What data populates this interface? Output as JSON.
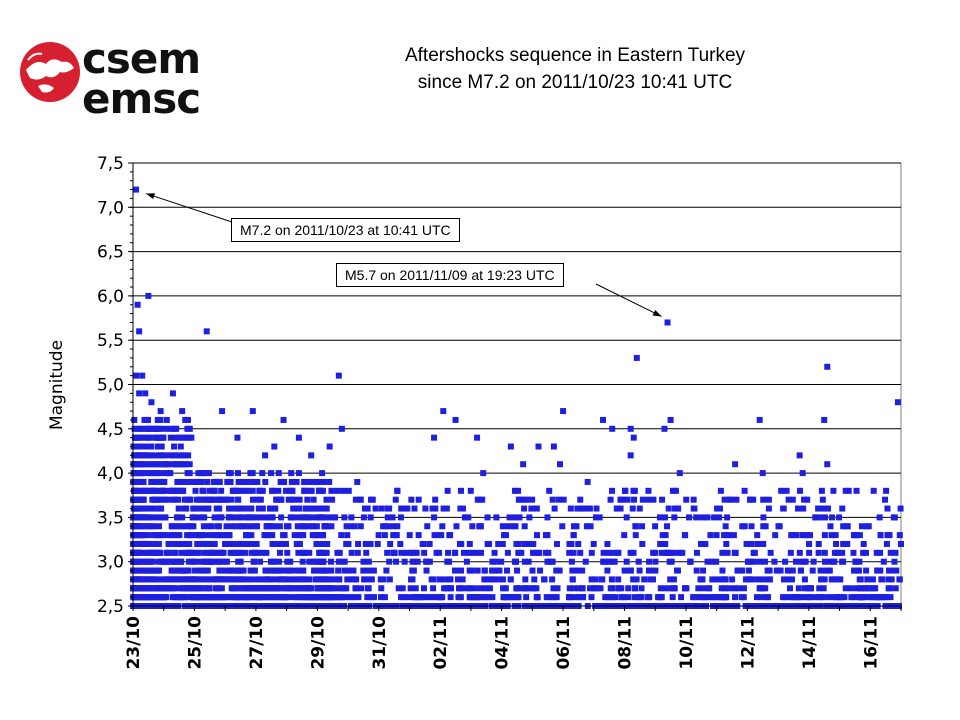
{
  "logo": {
    "line1": "csem",
    "line2": "emsc"
  },
  "title": {
    "line1": "Aftershocks sequence in Eastern Turkey",
    "line2": "since M7.2 on 2011/10/23 10:41 UTC"
  },
  "colors": {
    "marker": "#1f1fe0",
    "grid": "#000000",
    "logo_red": "#d6202f"
  },
  "chart_data": {
    "type": "scatter",
    "title": "Aftershocks sequence in Eastern Turkey since M7.2 on 2011/10/23 10:41 UTC",
    "xlabel": "",
    "ylabel": "Magnitude",
    "x_unit": "days since 2011/10/23",
    "xlim": [
      0,
      25
    ],
    "ylim": [
      2.5,
      7.5
    ],
    "yticks": [
      "2,5",
      "3,0",
      "3,5",
      "4,0",
      "4,5",
      "5,0",
      "5,5",
      "6,0",
      "6,5",
      "7,0",
      "7,5"
    ],
    "ytick_values": [
      2.5,
      3.0,
      3.5,
      4.0,
      4.5,
      5.0,
      5.5,
      6.0,
      6.5,
      7.0,
      7.5
    ],
    "xticks": [
      "23/10",
      "25/10",
      "27/10",
      "29/10",
      "31/10",
      "02/11",
      "04/11",
      "06/11",
      "08/11",
      "10/11",
      "12/11",
      "14/11",
      "16/11"
    ],
    "xtick_values": [
      0,
      2,
      4,
      6,
      8,
      10,
      12,
      14,
      16,
      18,
      20,
      22,
      24
    ],
    "grid": "horizontal",
    "annotations": [
      {
        "text": "M7.2 on 2011/10/23 at 10:41 UTC",
        "x": 0.1,
        "y": 7.2
      },
      {
        "text": "M5.7 on 2011/11/09 at 19:23 UTC",
        "x": 17.4,
        "y": 5.7
      }
    ],
    "series": [
      {
        "name": "",
        "points": [
          [
            0.1,
            7.2
          ],
          [
            0.15,
            5.9
          ],
          [
            0.2,
            5.6
          ],
          [
            0.5,
            6.0
          ],
          [
            2.4,
            5.6
          ],
          [
            6.7,
            5.1
          ],
          [
            16.4,
            5.3
          ],
          [
            17.4,
            5.7
          ],
          [
            22.6,
            5.2
          ],
          [
            24.9,
            4.8
          ],
          [
            0.1,
            5.1
          ],
          [
            0.3,
            5.1
          ],
          [
            0.2,
            4.9
          ],
          [
            0.4,
            4.9
          ],
          [
            0.6,
            4.8
          ],
          [
            1.3,
            4.9
          ],
          [
            0.9,
            4.7
          ],
          [
            1.1,
            4.6
          ],
          [
            1.6,
            4.7
          ],
          [
            1.7,
            4.6
          ],
          [
            2.9,
            4.7
          ],
          [
            3.4,
            4.4
          ],
          [
            3.9,
            4.7
          ],
          [
            4.9,
            4.6
          ],
          [
            5.4,
            4.4
          ],
          [
            6.4,
            4.3
          ],
          [
            6.8,
            4.5
          ],
          [
            9.8,
            4.4
          ],
          [
            10.1,
            4.7
          ],
          [
            10.5,
            4.6
          ],
          [
            11.2,
            4.4
          ],
          [
            11.4,
            4.0
          ],
          [
            12.3,
            4.3
          ],
          [
            13.2,
            4.3
          ],
          [
            13.7,
            4.3
          ],
          [
            13.9,
            4.1
          ],
          [
            14.0,
            4.7
          ],
          [
            15.3,
            4.6
          ],
          [
            15.6,
            4.5
          ],
          [
            16.2,
            4.5
          ],
          [
            16.3,
            4.4
          ],
          [
            16.2,
            4.2
          ],
          [
            17.3,
            4.5
          ],
          [
            17.5,
            4.6
          ],
          [
            17.8,
            4.0
          ],
          [
            19.6,
            4.1
          ],
          [
            20.4,
            4.6
          ],
          [
            20.5,
            4.0
          ],
          [
            21.7,
            4.2
          ],
          [
            21.8,
            4.0
          ],
          [
            22.5,
            4.6
          ],
          [
            22.6,
            4.1
          ],
          [
            22.8,
            3.8
          ],
          [
            23.2,
            3.8
          ],
          [
            24.8,
            3.5
          ],
          [
            25.0,
            3.2
          ],
          [
            4.3,
            4.2
          ],
          [
            4.6,
            4.3
          ],
          [
            5.8,
            4.2
          ],
          [
            7.3,
            3.9
          ],
          [
            8.6,
            3.8
          ],
          [
            9.3,
            3.7
          ],
          [
            12.7,
            4.1
          ],
          [
            14.8,
            3.9
          ],
          [
            16.1,
            3.7
          ],
          [
            18.1,
            3.5
          ],
          [
            19.4,
            3.7
          ],
          [
            20.7,
            3.6
          ],
          [
            21.1,
            3.8
          ],
          [
            23.9,
            3.4
          ]
        ]
      }
    ]
  }
}
